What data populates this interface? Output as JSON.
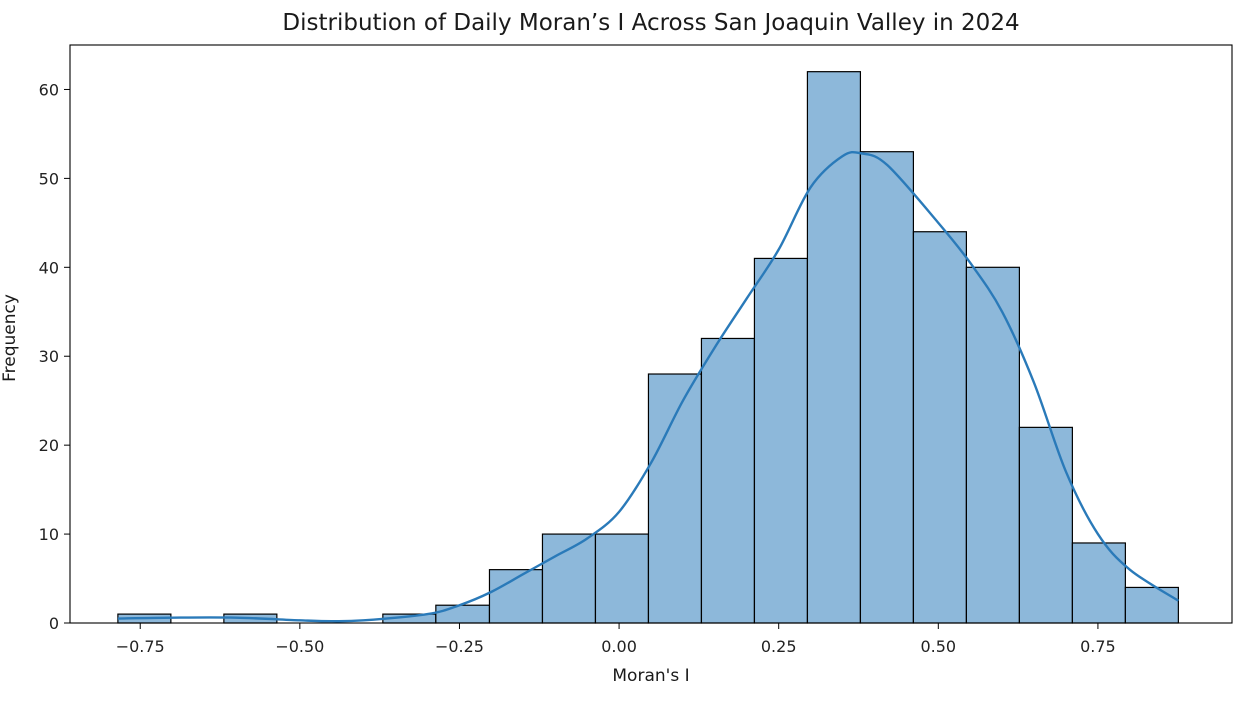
{
  "chart_data": {
    "type": "bar",
    "title": "Distribution of Daily Moran’s I Across San Joaquin Valley in 2024",
    "xlabel": "Moran's I",
    "ylabel": "Frequency",
    "xlim": [
      -0.86,
      0.96
    ],
    "ylim": [
      0,
      65
    ],
    "xticks": [
      -0.75,
      -0.5,
      -0.25,
      0.0,
      0.25,
      0.5,
      0.75
    ],
    "xtick_labels": [
      "−0.75",
      "−0.50",
      "−0.25",
      "0.00",
      "0.25",
      "0.50",
      "0.75"
    ],
    "yticks": [
      0,
      10,
      20,
      30,
      40,
      50,
      60
    ],
    "ytick_labels": [
      "0",
      "10",
      "20",
      "30",
      "40",
      "50",
      "60"
    ],
    "bins": [
      {
        "x0": -0.785,
        "x1": -0.702,
        "count": 1
      },
      {
        "x0": -0.702,
        "x1": -0.619,
        "count": 0
      },
      {
        "x0": -0.619,
        "x1": -0.536,
        "count": 1
      },
      {
        "x0": -0.536,
        "x1": -0.453,
        "count": 0
      },
      {
        "x0": -0.453,
        "x1": -0.37,
        "count": 0
      },
      {
        "x0": -0.37,
        "x1": -0.287,
        "count": 1
      },
      {
        "x0": -0.287,
        "x1": -0.203,
        "count": 2
      },
      {
        "x0": -0.203,
        "x1": -0.12,
        "count": 6
      },
      {
        "x0": -0.12,
        "x1": -0.037,
        "count": 10
      },
      {
        "x0": -0.037,
        "x1": 0.046,
        "count": 10
      },
      {
        "x0": 0.046,
        "x1": 0.129,
        "count": 28
      },
      {
        "x0": 0.129,
        "x1": 0.212,
        "count": 32
      },
      {
        "x0": 0.212,
        "x1": 0.295,
        "count": 41
      },
      {
        "x0": 0.295,
        "x1": 0.378,
        "count": 62
      },
      {
        "x0": 0.378,
        "x1": 0.461,
        "count": 53
      },
      {
        "x0": 0.461,
        "x1": 0.544,
        "count": 44
      },
      {
        "x0": 0.544,
        "x1": 0.627,
        "count": 40
      },
      {
        "x0": 0.627,
        "x1": 0.71,
        "count": 22
      },
      {
        "x0": 0.71,
        "x1": 0.793,
        "count": 9
      },
      {
        "x0": 0.793,
        "x1": 0.876,
        "count": 4
      }
    ],
    "kde": {
      "x": [
        -0.785,
        -0.7,
        -0.6,
        -0.5,
        -0.45,
        -0.4,
        -0.3,
        -0.25,
        -0.2,
        -0.15,
        -0.1,
        -0.05,
        0.0,
        0.05,
        0.1,
        0.15,
        0.2,
        0.25,
        0.3,
        0.35,
        0.38,
        0.42,
        0.5,
        0.55,
        0.6,
        0.65,
        0.7,
        0.75,
        0.8,
        0.876
      ],
      "y": [
        0.5,
        0.6,
        0.6,
        0.3,
        0.2,
        0.3,
        1.0,
        2.0,
        3.5,
        5.5,
        7.5,
        9.5,
        12.5,
        18.0,
        25.0,
        31.0,
        36.5,
        42.0,
        49.0,
        52.5,
        52.8,
        51.5,
        45.0,
        40.5,
        35.0,
        27.0,
        17.0,
        10.0,
        6.0,
        2.5
      ]
    },
    "colors": {
      "bar_fill": "#8db8da",
      "bar_edge": "#000000",
      "kde_line": "#2a7ab9"
    },
    "grid": false,
    "legend": "none"
  }
}
